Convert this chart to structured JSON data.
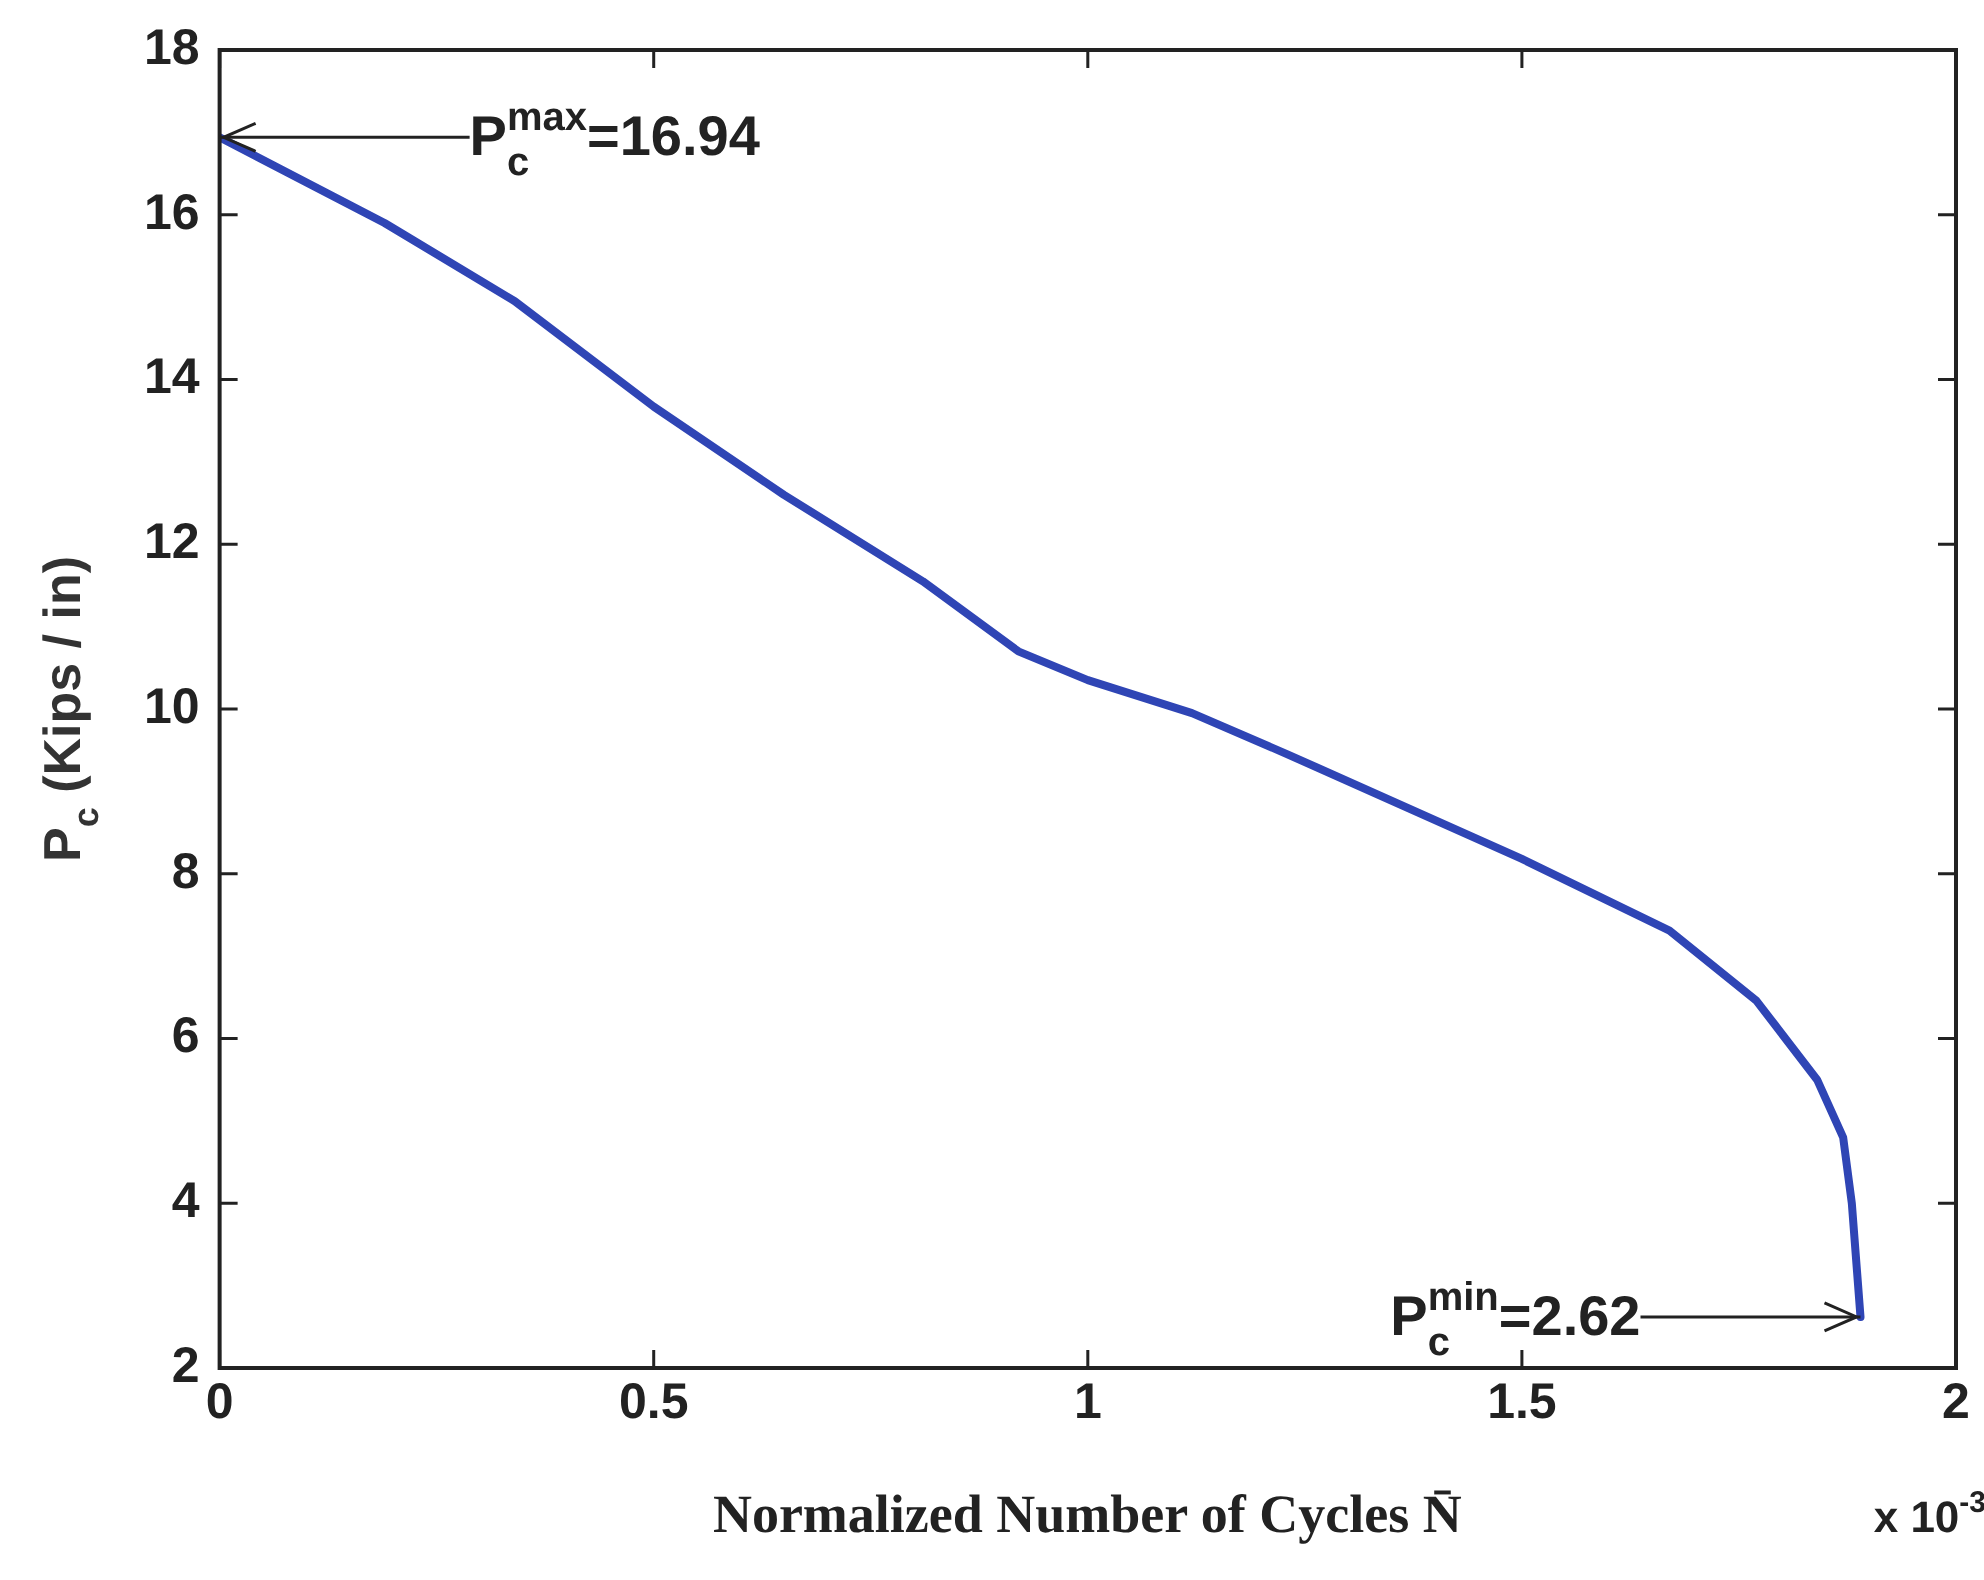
{
  "chart_data": {
    "type": "line",
    "xlabel": "Normalized Number of Cycles N̄",
    "ylabel": "P$_{c}$ (Kips / in)",
    "x": [
      0,
      0.19,
      0.34,
      0.5,
      0.65,
      0.81,
      0.92,
      1.0,
      1.12,
      1.23,
      1.5,
      1.67,
      1.77,
      1.84,
      1.87,
      1.88,
      1.89
    ],
    "series": [
      {
        "color": "#2f45b5",
        "values": [
          16.94,
          15.9,
          14.95,
          13.67,
          12.6,
          11.55,
          10.7,
          10.35,
          9.95,
          9.45,
          8.18,
          7.31,
          6.46,
          5.5,
          4.8,
          4.0,
          2.62
        ]
      }
    ],
    "xlim": [
      0,
      2
    ],
    "xticks": [
      0,
      0.5,
      1,
      1.5,
      2
    ],
    "ylim": [
      2,
      18
    ],
    "yticks": [
      2,
      4,
      6,
      8,
      10,
      12,
      14,
      16,
      18
    ],
    "annotations": [
      {
        "text": "P$_{c}$$^{max}$=16.94",
        "x": 0,
        "y": 16.94
      },
      {
        "text": "P$_{c}$$^{min}$=2.62",
        "x": 1.89,
        "y": 2.62
      },
      "x 10$^{-3}$"
    ]
  }
}
